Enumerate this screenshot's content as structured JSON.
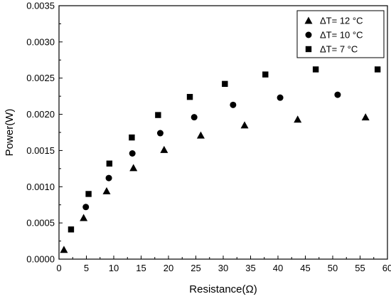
{
  "chart_data": {
    "type": "scatter",
    "title": "",
    "xlabel": "Resistance(Ω)",
    "ylabel": "Power(W)",
    "xlim": [
      0,
      60
    ],
    "ylim": [
      0,
      0.0035
    ],
    "x_ticks": [
      "0",
      "5",
      "10",
      "15",
      "20",
      "25",
      "30",
      "35",
      "40",
      "45",
      "50",
      "55",
      "60"
    ],
    "y_ticks": [
      "0.0000",
      "0.0005",
      "0.0010",
      "0.0015",
      "0.0020",
      "0.0025",
      "0.0030",
      "0.0035"
    ],
    "grid": false,
    "legend_position": "top-right",
    "series": [
      {
        "name": "ΔT= 12 °C",
        "marker": "triangle",
        "x": [
          0.9,
          4.5,
          8.7,
          13.6,
          19.2,
          25.9,
          33.9,
          43.6,
          56.0
        ],
        "y": [
          0.00013,
          0.00057,
          0.00094,
          0.00126,
          0.00151,
          0.00171,
          0.00185,
          0.00193,
          0.00196
        ]
      },
      {
        "name": "ΔT= 10 °C",
        "marker": "circle",
        "x": [
          4.9,
          9.1,
          13.4,
          18.5,
          24.7,
          31.8,
          40.4,
          50.9
        ],
        "y": [
          0.00072,
          0.00112,
          0.00146,
          0.00174,
          0.00196,
          0.00213,
          0.00223,
          0.00227
        ]
      },
      {
        "name": "ΔT= 7 °C",
        "marker": "square",
        "x": [
          2.2,
          5.4,
          9.2,
          13.3,
          18.1,
          23.9,
          30.3,
          37.7,
          46.9,
          58.2
        ],
        "y": [
          0.00041,
          0.0009,
          0.00132,
          0.00168,
          0.00199,
          0.00224,
          0.00242,
          0.00255,
          0.00262,
          0.00262
        ]
      }
    ]
  }
}
